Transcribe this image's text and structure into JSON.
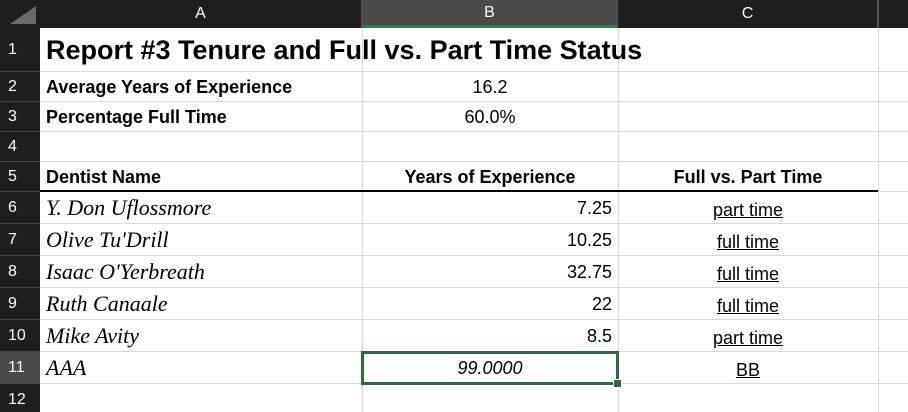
{
  "column_headers": [
    "A",
    "B",
    "C"
  ],
  "row_numbers": [
    "1",
    "2",
    "3",
    "4",
    "5",
    "6",
    "7",
    "8",
    "9",
    "10",
    "11",
    "12"
  ],
  "title": "Report #3 Tenure and Full vs. Part Time Status",
  "summary": [
    [
      "Average Years of Experience",
      "16.2"
    ],
    [
      "Percentage Full Time",
      "60.0%"
    ]
  ],
  "table": {
    "header": [
      "Dentist Name",
      "Years of Experience",
      "Full vs. Part Time"
    ],
    "rows": [
      [
        "Y. Don Uflossmore",
        "7.25",
        "part time"
      ],
      [
        "Olive Tu'Drill",
        "10.25",
        "full time"
      ],
      [
        "Isaac O'Yerbreath",
        "32.75",
        "full time"
      ],
      [
        "Ruth Canaale",
        "22",
        "full time"
      ],
      [
        "Mike Avity",
        "8.5",
        "part time"
      ],
      [
        "AAA",
        "99.0000",
        "BB"
      ]
    ]
  }
}
